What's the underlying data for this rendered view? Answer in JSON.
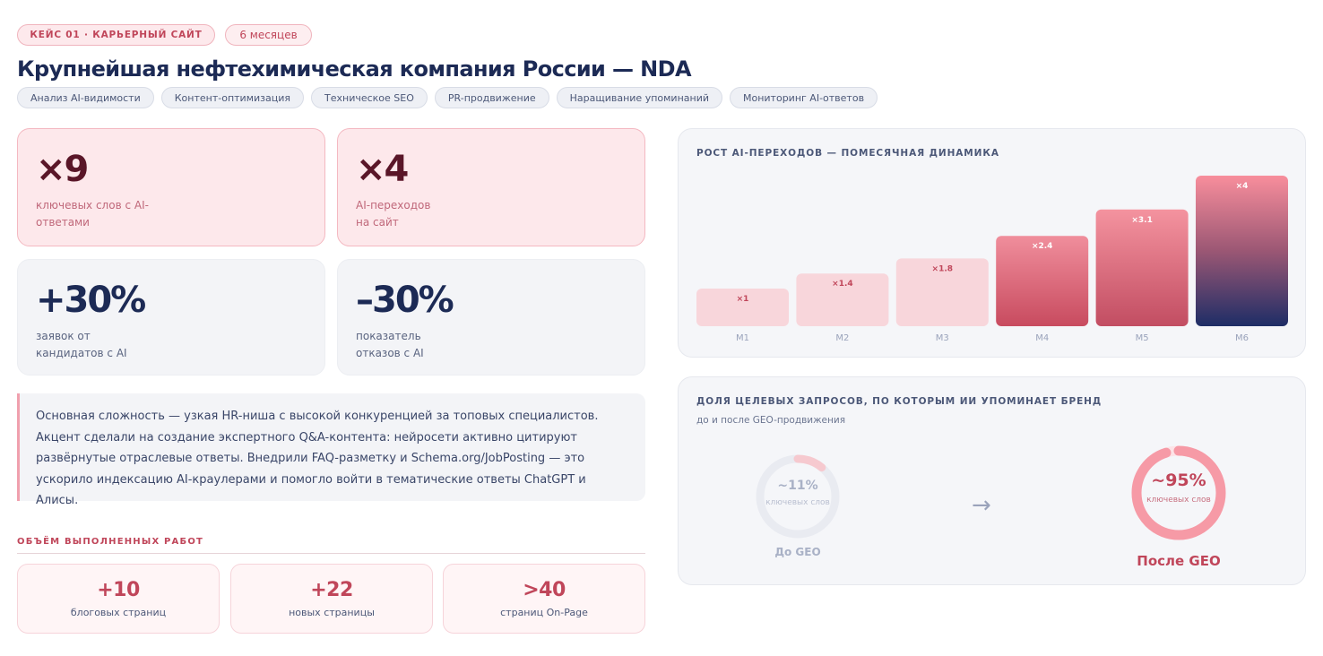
{
  "header": {
    "case_label": "КЕЙС 01 · КАРЬЕРНЫЙ САЙТ",
    "duration": "6 месяцев",
    "title": "Крупнейшая нефтехимическая компания России — NDA",
    "tags": [
      "Анализ AI-видимости",
      "Контент-оптимизация",
      "Техническое SEO",
      "PR-продвижение",
      "Наращивание упоминаний",
      "Мониторинг AI-ответов"
    ]
  },
  "stats": [
    {
      "value": "×9",
      "label": "ключевых слов с AI-ответами"
    },
    {
      "value": "×4",
      "label": "AI-переходов на сайт"
    },
    {
      "value": "+30%",
      "label": "заявок от кандидатов с AI"
    },
    {
      "value": "–30%",
      "label": "показатель отказов с AI"
    }
  ],
  "note": "Основная сложность — узкая HR-ниша с высокой конкуренцией за топовых специалистов. Акцент сделали на создание экспертного Q&A-контента: нейросети активно цитируют развёрнутые отраслевые ответы. Внедрили FAQ-разметку и Schema.org/JobPosting — это ускорило индексацию AI-краулерами и помогло войти в тематические ответы ChatGPT и Алисы.",
  "works": {
    "title": "ОБЪЁМ ВЫПОЛНЕННЫХ РАБОТ",
    "items": [
      {
        "value": "+10",
        "label": "блоговых страниц"
      },
      {
        "value": "+22",
        "label": "новых страницы"
      },
      {
        "value": ">40",
        "label": "страниц On-Page"
      }
    ]
  },
  "growth_chart": {
    "title": "РОСТ AI-ПЕРЕХОДОВ — ПОМЕСЯЧНАЯ ДИНАМИКА"
  },
  "chart_data": {
    "type": "bar",
    "categories": [
      "M1",
      "M2",
      "M3",
      "M4",
      "M5",
      "M6"
    ],
    "values": [
      1,
      1.4,
      1.8,
      2.4,
      3.1,
      4
    ],
    "value_labels": [
      "×1",
      "×1.4",
      "×1.8",
      "×2.4",
      "×3.1",
      "×4"
    ],
    "ylim": [
      0,
      4
    ],
    "grid": false
  },
  "share": {
    "title": "ДОЛЯ ЦЕЛЕВЫХ ЗАПРОСОВ, ПО КОТОРЫМ ИИ УПОМИНАЕТ БРЕНД",
    "subtitle": "до и после GEO-продвижения",
    "before": {
      "percent": 11,
      "value": "~11%",
      "unit": "ключевых слов",
      "caption": "До GEO"
    },
    "after": {
      "percent": 95,
      "value": "~95%",
      "unit": "ключевых слов",
      "caption": "После GEO"
    },
    "arrow_icon": "arrow-right-icon"
  },
  "colors": {
    "accent": "#c0465a",
    "navy": "#1c2a55",
    "pink_light": "#fde8eb"
  }
}
